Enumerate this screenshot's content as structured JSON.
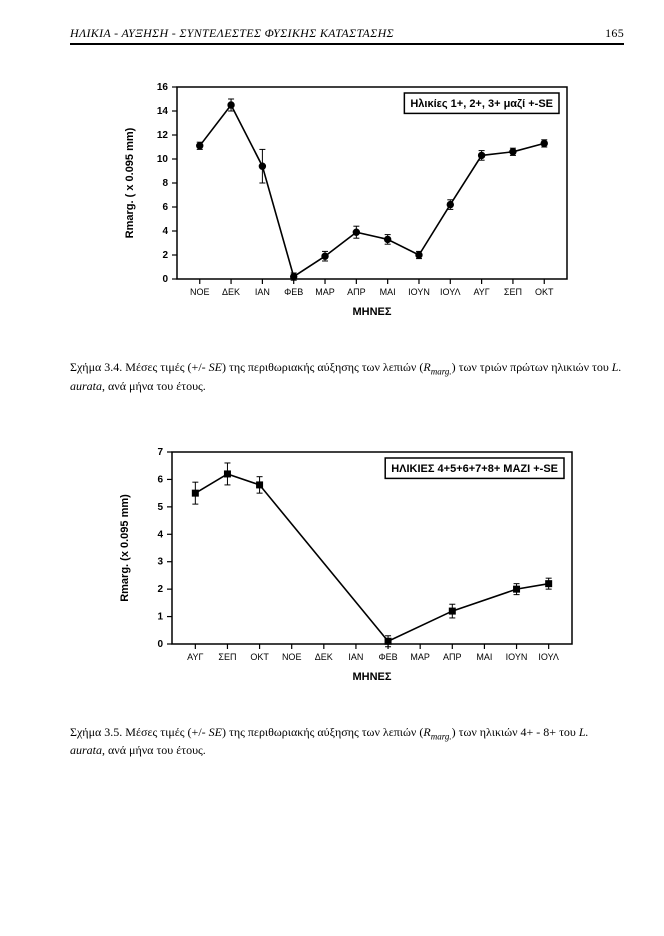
{
  "header": {
    "left": "ΗΛΙΚΙΑ - ΑΥΞΗΣΗ - ΣΥΝΤΕΛΕΣΤΕΣ ΦΥΣΙΚΗΣ ΚΑΤΑΣΤΑΣΗΣ",
    "pageno": "165"
  },
  "chart1": {
    "type": "line",
    "legend_text": "Ηλικίες 1+, 2+, 3+ μαζί   +-SE",
    "xlabel": "ΜΗΝΕΣ",
    "ylabel": "Rmarg. ( x 0.095 mm)",
    "categories": [
      "ΝΟΕ",
      "ΔΕΚ",
      "ΙΑΝ",
      "ΦΕΒ",
      "ΜΑΡ",
      "ΑΠΡ",
      "ΜΑΙ",
      "ΙΟΥΝ",
      "ΙΟΥΛ",
      "ΑΥΓ",
      "ΣΕΠ",
      "ΟΚΤ"
    ],
    "y": [
      11.1,
      14.5,
      9.4,
      0.2,
      1.9,
      3.9,
      3.3,
      2.0,
      6.2,
      10.3,
      10.6,
      11.3
    ],
    "err": [
      0.3,
      0.5,
      1.4,
      0.3,
      0.4,
      0.5,
      0.4,
      0.3,
      0.4,
      0.4,
      0.3,
      0.3
    ],
    "ylim": [
      0,
      16
    ],
    "ytick_step": 2,
    "colors": {
      "axis": "#000000",
      "line": "#000000",
      "marker_fill": "#000000",
      "background": "#ffffff",
      "legend_border": "#000000"
    },
    "line_width": 1.6,
    "marker_radius": 3.2,
    "font_size_ticks": 10,
    "font_size_labels": 11,
    "font_size_legend": 11
  },
  "caption1": {
    "prefix": "Σχήμα 3.4. Μέσες τιμές (+/- ",
    "se": "SE",
    "mid1": ") της περιθωριακής αύξησης των λεπιών (",
    "rmarg": "R",
    "rmarg_sub": "marg.",
    "mid2": ") των τριών πρώτων ηλικιών του ",
    "species": "L. aurata",
    "tail": ", ανά μήνα του έτους."
  },
  "chart2": {
    "type": "line",
    "legend_text": "ΗΛΙΚΙΕΣ 4+5+6+7+8+  ΜΑΖΙ   +-SE",
    "xlabel": "ΜΗΝΕΣ",
    "ylabel": "Rmarg. (x 0.095 mm)",
    "categories": [
      "ΑΥΓ",
      "ΣΕΠ",
      "ΟΚΤ",
      "ΝΟΕ",
      "ΔΕΚ",
      "ΙΑΝ",
      "ΦΕΒ",
      "ΜΑΡ",
      "ΑΠΡ",
      "ΜΑΙ",
      "ΙΟΥΝ",
      "ΙΟΥΛ"
    ],
    "y": [
      5.5,
      6.2,
      5.8,
      null,
      null,
      null,
      0.1,
      null,
      1.2,
      null,
      2.0,
      2.2
    ],
    "err": [
      0.4,
      0.4,
      0.3,
      null,
      null,
      null,
      0.2,
      null,
      0.25,
      null,
      0.2,
      0.2
    ],
    "ylim": [
      0,
      7
    ],
    "ytick_step": 1,
    "colors": {
      "axis": "#000000",
      "line": "#000000",
      "marker_fill": "#000000",
      "background": "#ffffff",
      "legend_border": "#000000"
    },
    "line_width": 1.6,
    "marker_radius": 3.0,
    "marker_shape": "square",
    "font_size_ticks": 10,
    "font_size_labels": 11,
    "font_size_legend": 11
  },
  "caption2": {
    "prefix": "Σχήμα 3.5. Μέσες τιμές (+/- ",
    "se": "SE",
    "mid1": ") της περιθωριακής αύξησης των λεπιών (",
    "rmarg": "R",
    "rmarg_sub": "marg.",
    "mid2": ") των ηλικιών 4+ - 8+ του ",
    "species": "L. aurata",
    "tail": ", ανά μήνα του έτους."
  }
}
